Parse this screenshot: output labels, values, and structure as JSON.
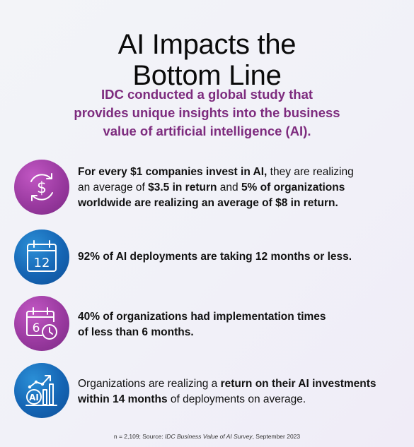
{
  "title": {
    "line1": "AI Impacts the",
    "line2": "Bottom Line"
  },
  "subtitle": {
    "line1": "IDC conducted a global study that",
    "line2": "provides unique insights into the business",
    "line3": "value of artificial intelligence (AI)."
  },
  "stats": [
    {
      "icon": "dollar-cycle-icon",
      "l1_bold": "For every $1 companies invest in AI,",
      "l1_rest": " they are realizing",
      "l2_a": "an average of ",
      "l2_b": "$3.5 in return",
      "l2_c": " and ",
      "l2_d": "5% of organizations",
      "l3": "worldwide are realizing an average of $8 in return."
    },
    {
      "icon": "calendar-12-icon",
      "calendar_number": "12",
      "l1": "92% of AI deployments are taking 12 months or less."
    },
    {
      "icon": "calendar-clock-6-icon",
      "calendar_number": "6",
      "l1": "40% of organizations had implementation times",
      "l2": "of less than 6 months."
    },
    {
      "icon": "ai-growth-chart-icon",
      "ai_label": "AI",
      "l1_a": "Organizations are realizing a ",
      "l1_b": "return on their AI investments",
      "l2_a": "within 14 months",
      "l2_b": " of deployments on average."
    }
  ],
  "footer": {
    "prefix": "n = 2,109; Source: ",
    "source": "IDC Business Value of AI Survey",
    "suffix": ", September 2023"
  },
  "colors": {
    "accent_purple": "#7d2b7e",
    "icon_purple": "#9a3aa0",
    "icon_blue": "#1565b4"
  }
}
